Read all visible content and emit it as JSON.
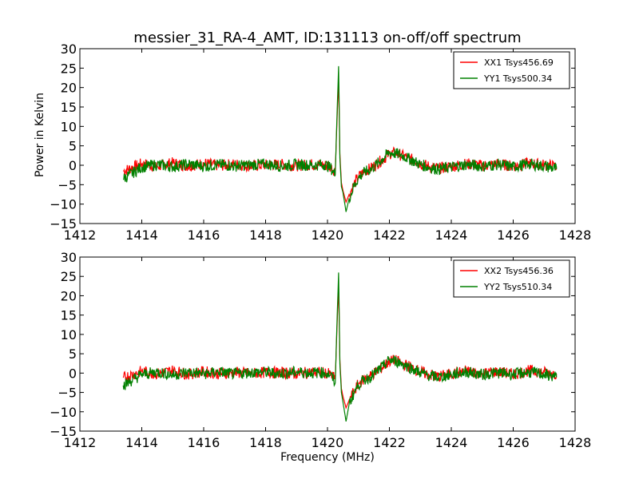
{
  "chart_data": [
    {
      "type": "line",
      "title": "messier_31_RA-4_AMT, ID:131113 on-off/off spectrum",
      "xlabel": "",
      "ylabel": "Power in Kelvin",
      "xlim": [
        1412,
        1428
      ],
      "ylim": [
        -15,
        30
      ],
      "xticks": [
        1412,
        1414,
        1416,
        1418,
        1420,
        1422,
        1424,
        1426,
        1428
      ],
      "yticks": [
        -15,
        -10,
        -5,
        0,
        5,
        10,
        15,
        20,
        25,
        30
      ],
      "grid": false,
      "legend_position": "top-right",
      "x": [
        1413.4,
        1414.0,
        1414.5,
        1415.0,
        1415.5,
        1416.0,
        1416.5,
        1417.0,
        1417.5,
        1418.0,
        1418.5,
        1419.0,
        1419.5,
        1419.9,
        1420.1,
        1420.25,
        1420.32,
        1420.36,
        1420.4,
        1420.45,
        1420.5,
        1420.6,
        1420.7,
        1420.85,
        1421.0,
        1421.2,
        1421.4,
        1421.6,
        1421.8,
        1422.0,
        1422.2,
        1422.4,
        1422.6,
        1422.8,
        1423.0,
        1423.3,
        1423.6,
        1424.0,
        1424.5,
        1425.0,
        1425.5,
        1426.0,
        1426.5,
        1427.0,
        1427.4
      ],
      "series": [
        {
          "name": "XX1 Tsys456.69",
          "color": "#ff0000",
          "values": [
            -1.5,
            0.4,
            -0.3,
            0.6,
            -0.2,
            0.5,
            -0.1,
            0.3,
            -0.2,
            0.1,
            0.2,
            -0.1,
            0.2,
            0.1,
            -0.5,
            -1.5,
            14.0,
            22.0,
            3.0,
            -4.5,
            -6.5,
            -9.5,
            -7.5,
            -5.0,
            -3.0,
            -1.5,
            -0.8,
            0.5,
            1.5,
            3.0,
            3.2,
            2.5,
            2.0,
            1.2,
            0.5,
            -0.4,
            -0.8,
            -0.3,
            0.4,
            -0.1,
            0.3,
            -0.2,
            0.5,
            0.1,
            -0.3
          ]
        },
        {
          "name": "YY1 Tsys500.34",
          "color": "#008000",
          "values": [
            -3.5,
            -0.5,
            0.2,
            -0.4,
            0.3,
            -0.3,
            0.2,
            -0.2,
            0.1,
            0.3,
            -0.2,
            0.2,
            0.0,
            0.2,
            -0.6,
            -2.5,
            16.0,
            25.5,
            2.0,
            -5.5,
            -7.0,
            -12.0,
            -8.5,
            -5.5,
            -3.2,
            -1.8,
            -1.0,
            0.3,
            1.8,
            3.3,
            3.0,
            2.6,
            1.8,
            1.0,
            0.2,
            -0.6,
            -1.0,
            -0.5,
            0.2,
            -0.3,
            0.2,
            -0.4,
            0.3,
            -0.2,
            -1.0
          ]
        }
      ]
    },
    {
      "type": "line",
      "title": "",
      "xlabel": "Frequency (MHz)",
      "ylabel": "",
      "xlim": [
        1412,
        1428
      ],
      "ylim": [
        -15,
        30
      ],
      "xticks": [
        1412,
        1414,
        1416,
        1418,
        1420,
        1422,
        1424,
        1426,
        1428
      ],
      "yticks": [
        -15,
        -10,
        -5,
        0,
        5,
        10,
        15,
        20,
        25,
        30
      ],
      "grid": false,
      "legend_position": "top-right",
      "x": [
        1413.4,
        1414.0,
        1414.5,
        1415.0,
        1415.5,
        1416.0,
        1416.5,
        1417.0,
        1417.5,
        1418.0,
        1418.5,
        1419.0,
        1419.5,
        1419.9,
        1420.1,
        1420.25,
        1420.32,
        1420.36,
        1420.4,
        1420.45,
        1420.5,
        1420.6,
        1420.7,
        1420.85,
        1421.0,
        1421.2,
        1421.4,
        1421.6,
        1421.8,
        1422.0,
        1422.2,
        1422.4,
        1422.6,
        1422.8,
        1423.0,
        1423.3,
        1423.6,
        1424.0,
        1424.5,
        1425.0,
        1425.5,
        1426.0,
        1426.5,
        1427.0,
        1427.4
      ],
      "series": [
        {
          "name": "XX2 Tsys456.36",
          "color": "#ff0000",
          "values": [
            -1.2,
            0.5,
            -0.2,
            0.7,
            -0.3,
            0.4,
            -0.2,
            0.2,
            -0.1,
            0.2,
            0.1,
            -0.2,
            0.3,
            0.1,
            -0.4,
            -1.6,
            14.5,
            22.5,
            3.5,
            -4.0,
            -6.0,
            -9.0,
            -7.0,
            -4.8,
            -2.8,
            -1.4,
            -0.7,
            0.6,
            1.6,
            3.1,
            3.3,
            2.4,
            1.9,
            1.1,
            0.4,
            -0.5,
            -0.9,
            -0.2,
            0.5,
            -0.1,
            0.4,
            -0.3,
            0.6,
            0.2,
            -0.2
          ]
        },
        {
          "name": "YY2 Tsys510.34",
          "color": "#008000",
          "values": [
            -3.2,
            -0.4,
            0.3,
            -0.5,
            0.2,
            -0.2,
            0.3,
            -0.3,
            0.2,
            0.2,
            -0.1,
            0.3,
            0.1,
            0.1,
            -0.5,
            -2.6,
            16.5,
            26.0,
            2.5,
            -5.0,
            -7.5,
            -12.5,
            -8.0,
            -5.2,
            -3.0,
            -1.7,
            -0.9,
            0.4,
            1.7,
            3.4,
            3.1,
            2.5,
            1.7,
            0.9,
            0.1,
            -0.7,
            -1.1,
            -0.4,
            0.3,
            -0.4,
            0.1,
            -0.3,
            0.2,
            -0.3,
            -1.1
          ]
        }
      ]
    }
  ]
}
